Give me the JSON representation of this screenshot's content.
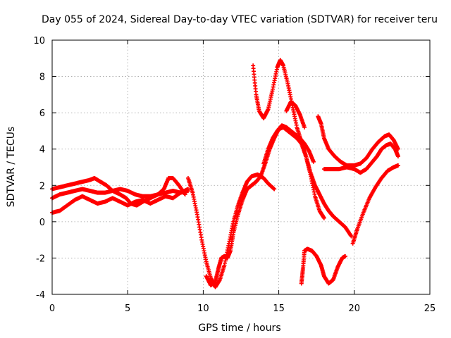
{
  "chart_data": {
    "type": "scatter",
    "title": "Day 055 of 2024, Sidereal Day-to-day VTEC variation (SDTVAR) for receiver teru",
    "xlabel": "GPS time / hours",
    "ylabel": "SDTVAR / TECUs",
    "xlim": [
      0,
      25
    ],
    "ylim": [
      -4,
      10
    ],
    "xticks": [
      0,
      5,
      10,
      15,
      20,
      25
    ],
    "yticks": [
      -4,
      -2,
      0,
      2,
      4,
      6,
      8,
      10
    ],
    "grid": true,
    "marker": "+",
    "color": "#ff0000",
    "series": [
      {
        "x": [
          0.0,
          0.5,
          1.0,
          1.5,
          2.0,
          2.5,
          2.8,
          3.2,
          3.6,
          4.0,
          4.5,
          4.9,
          5.2,
          5.6,
          6.0,
          6.5,
          7.0,
          7.4,
          7.7,
          8.0,
          8.4,
          8.8
        ],
        "y": [
          1.8,
          1.9,
          2.0,
          2.1,
          2.2,
          2.3,
          2.4,
          2.2,
          2.0,
          1.7,
          1.5,
          1.3,
          1.0,
          0.9,
          1.1,
          1.3,
          1.5,
          1.8,
          2.4,
          2.4,
          2.0,
          1.5
        ]
      },
      {
        "x": [
          0.0,
          0.5,
          1.0,
          1.5,
          2.0,
          2.5,
          3.0,
          3.5,
          4.0,
          4.5,
          5.0,
          5.5,
          6.0,
          6.5,
          7.0,
          7.5,
          8.0,
          8.5,
          9.0
        ],
        "y": [
          1.3,
          1.5,
          1.6,
          1.7,
          1.8,
          1.7,
          1.6,
          1.6,
          1.7,
          1.8,
          1.7,
          1.5,
          1.4,
          1.4,
          1.5,
          1.6,
          1.7,
          1.6,
          1.8
        ]
      },
      {
        "x": [
          0.0,
          0.5,
          1.0,
          1.5,
          2.0,
          2.5,
          3.0,
          3.5,
          4.0,
          4.5,
          5.0,
          5.5,
          6.0,
          6.5,
          7.0,
          7.5,
          8.0,
          8.5,
          9.0
        ],
        "y": [
          0.5,
          0.6,
          0.9,
          1.2,
          1.4,
          1.2,
          1.0,
          1.1,
          1.3,
          1.1,
          0.9,
          1.1,
          1.2,
          1.0,
          1.2,
          1.4,
          1.3,
          1.6,
          1.7
        ]
      },
      {
        "x": [
          9.0,
          9.3,
          9.6,
          9.9,
          10.2,
          10.5,
          10.8,
          11.1,
          11.4,
          11.7,
          12.0,
          12.3,
          12.6,
          12.9,
          13.2,
          13.6,
          14.0,
          14.3,
          14.7
        ],
        "y": [
          2.4,
          1.6,
          0.4,
          -1.0,
          -2.2,
          -3.1,
          -3.6,
          -3.2,
          -2.4,
          -1.2,
          0.0,
          0.9,
          1.6,
          2.2,
          2.5,
          2.6,
          2.4,
          2.1,
          1.8
        ]
      },
      {
        "x": [
          10.2,
          10.5,
          10.8,
          11.0,
          11.2,
          11.4,
          11.6,
          11.8,
          12.0,
          12.3,
          12.6,
          12.9,
          13.2,
          13.5,
          13.8,
          14.1,
          14.4,
          14.7,
          15.0,
          15.3,
          15.6,
          15.9,
          16.2,
          16.5,
          16.8,
          17.1,
          17.4,
          17.7,
          18.0
        ],
        "y": [
          -3.0,
          -3.5,
          -3.3,
          -2.6,
          -2.0,
          -1.9,
          -2.0,
          -1.6,
          -0.6,
          0.4,
          1.2,
          1.8,
          2.0,
          2.2,
          2.5,
          3.2,
          4.0,
          4.6,
          5.1,
          5.2,
          5.0,
          4.8,
          4.6,
          4.3,
          3.6,
          2.6,
          1.4,
          0.6,
          0.2
        ]
      },
      {
        "x": [
          13.3,
          13.5,
          13.7,
          14.0,
          14.3,
          14.6,
          14.9,
          15.1,
          15.3,
          15.6,
          15.9,
          16.2,
          16.5,
          16.8,
          17.1,
          17.4,
          17.7,
          18.0,
          18.3,
          18.6,
          19.0,
          19.4,
          19.8
        ],
        "y": [
          8.6,
          7.0,
          6.1,
          5.7,
          6.2,
          7.3,
          8.5,
          8.9,
          8.6,
          7.6,
          6.4,
          5.2,
          4.4,
          3.6,
          2.7,
          2.0,
          1.5,
          1.0,
          0.6,
          0.3,
          0.0,
          -0.3,
          -0.8
        ]
      },
      {
        "x": [
          14.0,
          14.3,
          14.6,
          14.9,
          15.2,
          15.5,
          15.8,
          16.1,
          16.4,
          16.7,
          17.0,
          17.3
        ],
        "y": [
          3.2,
          4.0,
          4.6,
          5.0,
          5.3,
          5.2,
          5.0,
          4.8,
          4.6,
          4.3,
          3.9,
          3.3
        ]
      },
      {
        "x": [
          15.5,
          15.8,
          16.1,
          16.4,
          16.7
        ],
        "y": [
          6.1,
          6.6,
          6.4,
          5.9,
          5.2
        ]
      },
      {
        "x": [
          16.5,
          16.6,
          16.7,
          16.9,
          17.2,
          17.5,
          17.8,
          18.0,
          18.3,
          18.6,
          18.9,
          19.2,
          19.4
        ],
        "y": [
          -3.4,
          -2.6,
          -1.6,
          -1.5,
          -1.6,
          -1.9,
          -2.4,
          -3.0,
          -3.4,
          -3.2,
          -2.5,
          -2.0,
          -1.9
        ]
      },
      {
        "x": [
          17.6,
          17.8,
          18.0,
          18.3,
          18.7,
          19.1,
          19.5,
          20.0,
          20.4,
          20.8,
          21.2,
          21.6,
          22.0,
          22.3,
          22.6,
          22.9
        ],
        "y": [
          5.8,
          5.4,
          4.6,
          4.0,
          3.6,
          3.3,
          3.1,
          3.1,
          3.2,
          3.5,
          4.0,
          4.4,
          4.7,
          4.8,
          4.5,
          4.0
        ]
      },
      {
        "x": [
          18.0,
          18.5,
          19.0,
          19.5,
          20.0,
          20.4,
          20.8,
          21.2,
          21.5,
          21.8,
          22.1,
          22.4,
          22.7,
          22.9
        ],
        "y": [
          2.9,
          2.9,
          2.9,
          3.0,
          2.9,
          2.7,
          2.9,
          3.3,
          3.6,
          4.0,
          4.2,
          4.3,
          4.0,
          3.6
        ]
      },
      {
        "x": [
          19.9,
          20.2,
          20.6,
          21.0,
          21.4,
          21.8,
          22.2,
          22.6,
          22.9
        ],
        "y": [
          -1.2,
          -0.4,
          0.5,
          1.3,
          1.9,
          2.4,
          2.8,
          3.0,
          3.1
        ]
      }
    ]
  }
}
